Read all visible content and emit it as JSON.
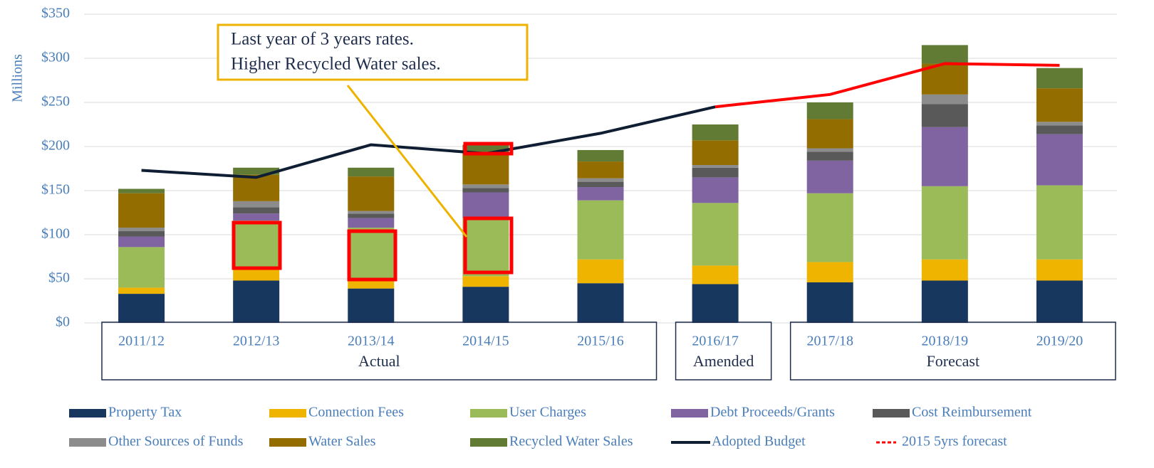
{
  "chart_data": {
    "type": "bar",
    "stacked": true,
    "ylabel": "Millions",
    "categories": [
      "2011/12",
      "2012/13",
      "2013/14",
      "2014/15",
      "2015/16",
      "2016/17",
      "2017/18",
      "2018/19",
      "2019/20"
    ],
    "groups": [
      {
        "label": "Actual",
        "span": 5
      },
      {
        "label": "Amended",
        "span": 1
      },
      {
        "label": "Forecast",
        "span": 3
      }
    ],
    "ylim": [
      0,
      350
    ],
    "yticks": [
      {
        "value": 0,
        "label": "$0"
      },
      {
        "value": 50,
        "label": "$50"
      },
      {
        "value": 100,
        "label": "$100"
      },
      {
        "value": 150,
        "label": "$150"
      },
      {
        "value": 200,
        "label": "$200"
      },
      {
        "value": 250,
        "label": "$250"
      },
      {
        "value": 300,
        "label": "$300"
      },
      {
        "value": 350,
        "label": "$350"
      }
    ],
    "grid": true,
    "series": [
      {
        "name": "Property Tax",
        "color": "#17375e",
        "values": [
          33,
          48,
          39,
          41,
          45,
          44,
          46,
          48,
          48
        ]
      },
      {
        "name": "Connection Fees",
        "color": "#efb400",
        "values": [
          7,
          13,
          9,
          12,
          27,
          21,
          23,
          24,
          24
        ]
      },
      {
        "name": "User Charges",
        "color": "#9bbb59",
        "values": [
          46,
          55,
          60,
          66,
          67,
          71,
          78,
          83,
          84
        ]
      },
      {
        "name": "Debt Proceeds/Grants",
        "color": "#8064a2",
        "values": [
          12,
          8,
          11,
          29,
          15,
          29,
          37,
          67,
          58
        ]
      },
      {
        "name": "Cost Reimbursement",
        "color": "#595959",
        "values": [
          6,
          7,
          5,
          5,
          6,
          11,
          10,
          26,
          10
        ]
      },
      {
        "name": "Other Sources of Funds",
        "color": "#8c8c8c",
        "values": [
          4,
          7,
          3,
          4,
          4,
          3,
          4,
          11,
          4
        ]
      },
      {
        "name": "Water Sales",
        "color": "#946d00",
        "values": [
          39,
          30,
          39,
          36,
          19,
          28,
          33,
          35,
          38
        ]
      },
      {
        "name": "Recycled Water Sales",
        "color": "#617b34",
        "values": [
          5,
          8,
          10,
          9,
          13,
          18,
          19,
          21,
          23
        ]
      },
      {
        "name": "Adopted Budget",
        "type": "line",
        "color": "#0f1e32",
        "values": [
          173,
          165,
          202,
          192,
          215,
          245,
          null,
          null,
          null
        ]
      },
      {
        "name": "2015 5yrs forecast",
        "type": "line",
        "color": "#ff0000",
        "legend_style": "dashed",
        "values": [
          null,
          null,
          null,
          null,
          null,
          245,
          259,
          294,
          292
        ]
      }
    ],
    "annotation": {
      "lines": [
        "Last year of 3 years rates.",
        "Higher Recycled Water sales."
      ]
    }
  }
}
